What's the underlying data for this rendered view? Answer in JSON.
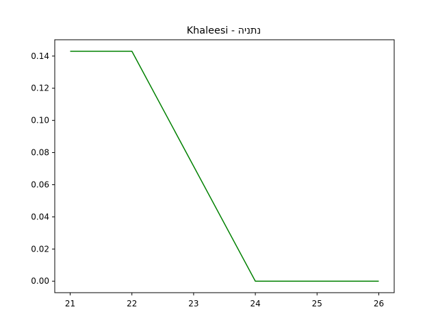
{
  "chart_data": {
    "type": "line",
    "title": "Khaleesi - נתניה",
    "xlabel": "",
    "ylabel": "",
    "x": [
      21,
      22,
      23,
      24,
      25,
      26
    ],
    "series": [
      {
        "color": "#008000",
        "values": [
          0.143,
          0.143,
          0.0715,
          0.0,
          0.0,
          0.0
        ]
      }
    ],
    "xlim": [
      20.75,
      26.25
    ],
    "ylim": [
      -0.00715,
      0.15015
    ],
    "xticks": [
      21,
      22,
      23,
      24,
      25,
      26
    ],
    "xtick_labels": [
      "21",
      "22",
      "23",
      "24",
      "25",
      "26"
    ],
    "yticks": [
      0.0,
      0.02,
      0.04,
      0.06,
      0.08,
      0.1,
      0.12,
      0.14
    ],
    "ytick_labels": [
      "0.00",
      "0.02",
      "0.04",
      "0.06",
      "0.08",
      "0.10",
      "0.12",
      "0.14"
    ],
    "grid": false,
    "legend": false
  }
}
